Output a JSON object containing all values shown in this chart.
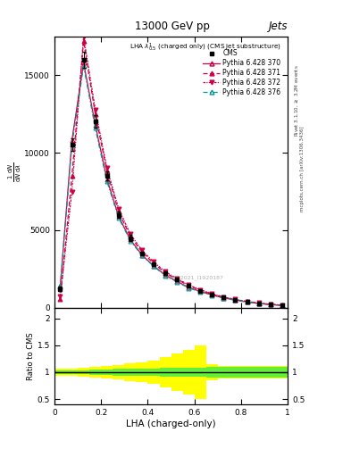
{
  "title": "13000 GeV pp",
  "title_right": "Jets",
  "plot_label": "LHA $\\lambda^{1}_{0.5}$ (charged only) (CMS jet substructure)",
  "xlabel": "LHA (charged-only)",
  "ylabel_main": "$\\frac{1}{\\mathrm{d}N}\\frac{\\mathrm{d}N}{\\mathrm{d}\\lambda}$",
  "ylabel_ratio": "Ratio to CMS",
  "right_label_top": "Rivet 3.1.10, $\\geq$ 3.2M events",
  "right_label_bot": "mcplots.cern.ch [arXiv:1306.3436]",
  "watermark": "CMS_2021_I1920187",
  "x_values": [
    0.025,
    0.075,
    0.125,
    0.175,
    0.225,
    0.275,
    0.325,
    0.375,
    0.425,
    0.475,
    0.525,
    0.575,
    0.625,
    0.675,
    0.725,
    0.775,
    0.825,
    0.875,
    0.925,
    0.975
  ],
  "cms_y": [
    1200,
    10500,
    16000,
    12000,
    8500,
    6000,
    4500,
    3500,
    2800,
    2200,
    1800,
    1400,
    1100,
    850,
    650,
    500,
    380,
    280,
    200,
    150
  ],
  "cms_yerr": [
    150,
    400,
    500,
    400,
    300,
    200,
    180,
    130,
    100,
    80,
    70,
    55,
    45,
    35,
    30,
    25,
    20,
    18,
    14,
    10
  ],
  "py370_y": [
    1400,
    10800,
    15800,
    11800,
    8300,
    5900,
    4400,
    3400,
    2700,
    2100,
    1700,
    1300,
    1050,
    820,
    630,
    490,
    370,
    270,
    195,
    145
  ],
  "py371_y": [
    550,
    8500,
    17200,
    12500,
    8800,
    6200,
    4600,
    3600,
    2850,
    2250,
    1820,
    1420,
    1120,
    870,
    670,
    510,
    390,
    290,
    210,
    155
  ],
  "py372_y": [
    750,
    7500,
    17500,
    12800,
    9000,
    6400,
    4750,
    3700,
    2950,
    2320,
    1880,
    1470,
    1160,
    900,
    690,
    530,
    405,
    300,
    218,
    160
  ],
  "py376_y": [
    1350,
    10500,
    15600,
    11600,
    8150,
    5800,
    4320,
    3370,
    2670,
    2070,
    1670,
    1270,
    1020,
    800,
    615,
    475,
    360,
    262,
    189,
    140
  ],
  "ratio_green_upper": [
    1.03,
    1.04,
    1.04,
    1.05,
    1.05,
    1.06,
    1.06,
    1.07,
    1.07,
    1.08,
    1.08,
    1.09,
    1.09,
    1.1,
    1.1,
    1.1,
    1.1,
    1.1,
    1.1,
    1.1
  ],
  "ratio_green_lower": [
    0.97,
    0.96,
    0.96,
    0.95,
    0.95,
    0.94,
    0.94,
    0.93,
    0.93,
    0.92,
    0.92,
    0.91,
    0.91,
    0.9,
    0.9,
    0.9,
    0.9,
    0.9,
    0.9,
    0.9
  ],
  "ratio_yellow_upper": [
    1.06,
    1.07,
    1.08,
    1.1,
    1.12,
    1.14,
    1.16,
    1.18,
    1.22,
    1.28,
    1.35,
    1.42,
    1.5,
    1.15,
    1.12,
    1.12,
    1.12,
    1.12,
    1.12,
    1.12
  ],
  "ratio_yellow_lower": [
    0.94,
    0.93,
    0.92,
    0.9,
    0.88,
    0.86,
    0.84,
    0.82,
    0.78,
    0.72,
    0.65,
    0.58,
    0.5,
    0.85,
    0.88,
    0.88,
    0.88,
    0.88,
    0.88,
    0.88
  ],
  "color_370": "#cc0044",
  "color_371": "#cc0044",
  "color_372": "#cc0044",
  "color_376": "#009999",
  "marker_370": "^",
  "marker_371": "^",
  "marker_372": "v",
  "marker_376": "^",
  "ylim_main": [
    0,
    17500
  ],
  "yticks_main": [
    0,
    5000,
    10000,
    15000
  ],
  "ylim_ratio": [
    0.4,
    2.2
  ],
  "yticks_ratio": [
    0.5,
    1.0,
    1.5,
    2.0
  ],
  "xlim": [
    0.0,
    1.0
  ],
  "xticks": [
    0.0,
    0.2,
    0.4,
    0.6,
    0.8,
    1.0
  ]
}
